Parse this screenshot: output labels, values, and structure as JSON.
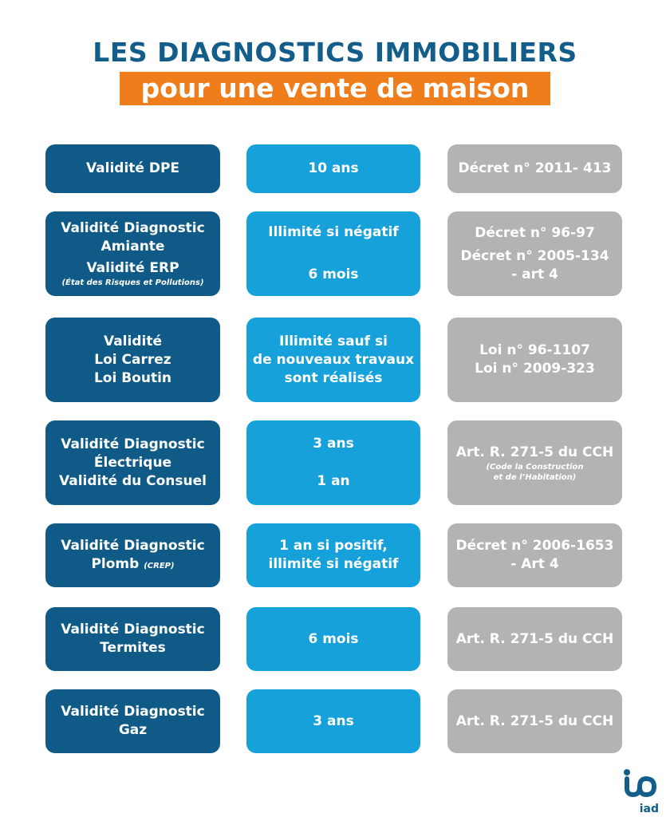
{
  "header": {
    "title": "LES DIAGNOSTICS IMMOBILIERS",
    "subtitle": "pour une vente de maison"
  },
  "colors": {
    "dark_blue": "#0f5a86",
    "light_blue": "#17a1da",
    "gray": "#b3b3b3",
    "orange": "#f07d1c"
  },
  "rows": [
    {
      "label": [
        "Validité DPE"
      ],
      "validity": [
        "10 ans"
      ],
      "law": [
        "Décret n° 2011- 413"
      ]
    },
    {
      "label": [
        "Validité Diagnostic",
        "Amiante",
        "Validité ERP"
      ],
      "label_note": "(État des Risques et Pollutions)",
      "validity": [
        "Illimité si négatif",
        "6 mois"
      ],
      "law": [
        "Décret n° 96-97",
        "Décret n° 2005-134",
        "- art 4"
      ]
    },
    {
      "label": [
        "Validité",
        "Loi Carrez",
        "Loi Boutin"
      ],
      "validity": [
        "Illimité sauf si",
        "de nouveaux travaux",
        "sont réalisés"
      ],
      "law": [
        "Loi n° 96-1107",
        "Loi n° 2009-323"
      ]
    },
    {
      "label": [
        "Validité Diagnostic",
        "Électrique",
        "Validité du Consuel"
      ],
      "validity": [
        "3 ans",
        "1 an"
      ],
      "law": [
        "Art. R. 271-5 du CCH"
      ],
      "law_note": [
        "(Code la Construction",
        "et de l’Habitation)"
      ]
    },
    {
      "label": [
        "Validité Diagnostic",
        "Plomb"
      ],
      "label_note": "(CREP)",
      "validity": [
        "1 an si positif,",
        "illimité si négatif"
      ],
      "law": [
        "Décret n° 2006-1653",
        "- Art 4"
      ]
    },
    {
      "label": [
        "Validité Diagnostic",
        "Termites"
      ],
      "validity": [
        "6 mois"
      ],
      "law": [
        "Art. R. 271-5 du CCH"
      ]
    },
    {
      "label": [
        "Validité Diagnostic",
        "Gaz"
      ],
      "validity": [
        "3 ans"
      ],
      "law": [
        "Art. R. 271-5 du CCH"
      ]
    }
  ],
  "logo": {
    "text": "iad"
  }
}
